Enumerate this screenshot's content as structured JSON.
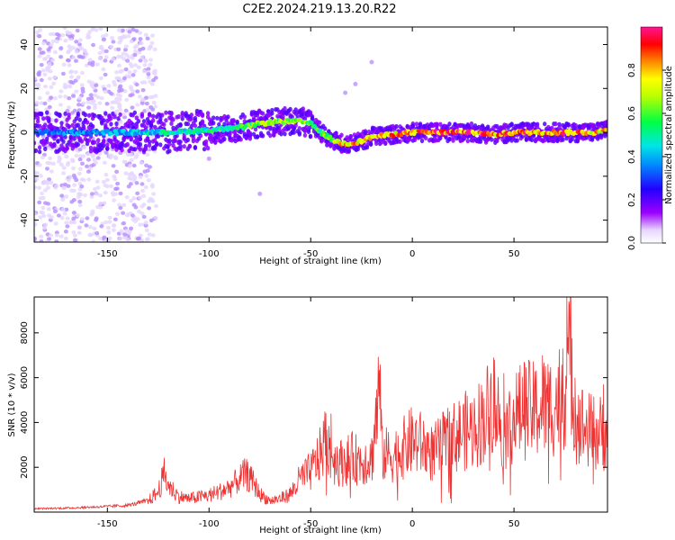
{
  "title": "C2E2.2024.219.13.20.R22",
  "colors": {
    "spectrogram_hot": "#ff1a1a",
    "spectrogram_mid": "#00ff66",
    "spectrogram_low": "#3300ff",
    "spectrogram_faint": "#c8a8ff",
    "snr_line": "#ee3333"
  },
  "chart_data": [
    {
      "type": "heatmap",
      "title": "C2E2.2024.219.13.20.R22",
      "xlabel": "Height of straight line (km)",
      "ylabel": "Frequency (Hz)",
      "xlim": [
        -186,
        96
      ],
      "ylim": [
        -50,
        48
      ],
      "x_ticks": [
        -150,
        -100,
        -50,
        0,
        50
      ],
      "x_tick_labels": [
        "-150",
        "-100",
        "-50",
        "0",
        "50"
      ],
      "y_ticks": [
        -40,
        -20,
        0,
        20,
        40
      ],
      "y_tick_labels": [
        "-40",
        "-20",
        "0",
        "20",
        "40"
      ],
      "colorbar": {
        "label": "Normalized spectral amplitude",
        "range": [
          0,
          1
        ],
        "ticks": [
          0.0,
          0.2,
          0.4,
          0.6,
          0.8
        ],
        "tick_labels": [
          "0.0",
          "0.2",
          "0.4",
          "0.6",
          "0.8"
        ]
      },
      "ridge": {
        "x": [
          -186,
          -160,
          -140,
          -120,
          -100,
          -85,
          -75,
          -65,
          -55,
          -50,
          -45,
          -40,
          -35,
          -30,
          -25,
          -20,
          -10,
          0,
          10,
          20,
          30,
          40,
          50,
          60,
          70,
          80,
          90,
          96
        ],
        "y": [
          0,
          0,
          0,
          0,
          1,
          2,
          4,
          5,
          5,
          4,
          0,
          -3,
          -5,
          -5,
          -4,
          -2,
          -1,
          0,
          0,
          0,
          0,
          -1,
          0,
          0,
          0,
          0,
          0,
          1
        ],
        "peak_amplitude": [
          0.35,
          0.4,
          0.45,
          0.5,
          0.55,
          0.6,
          0.65,
          0.7,
          0.7,
          0.65,
          0.6,
          0.7,
          0.8,
          0.85,
          0.85,
          0.8,
          0.85,
          0.9,
          0.95,
          0.95,
          0.95,
          0.9,
          0.95,
          0.9,
          0.95,
          0.9,
          0.85,
          0.8
        ]
      },
      "grid": false
    },
    {
      "type": "line",
      "xlabel": "Height of straight line (km)",
      "ylabel": "SNR (10 * v/v)",
      "xlim": [
        -186,
        96
      ],
      "ylim": [
        0,
        9600
      ],
      "x_ticks": [
        -150,
        -100,
        -50,
        0,
        50
      ],
      "x_tick_labels": [
        "-150",
        "-100",
        "-50",
        "0",
        "50"
      ],
      "y_ticks": [
        2000,
        4000,
        6000,
        8000
      ],
      "y_tick_labels": [
        "2000",
        "4000",
        "6000",
        "8000"
      ],
      "series": [
        {
          "x": [
            -186,
            -170,
            -150,
            -140,
            -130,
            -125,
            -122,
            -120,
            -115,
            -110,
            -100,
            -95,
            -90,
            -82,
            -78,
            -75,
            -70,
            -65,
            -60,
            -55,
            -50,
            -45,
            -42,
            -40,
            -35,
            -30,
            -25,
            -20,
            -16,
            -15,
            -10,
            -5,
            0,
            5,
            10,
            15,
            20,
            25,
            30,
            35,
            40,
            45,
            50,
            55,
            60,
            65,
            70,
            75,
            78,
            80,
            85,
            90,
            96
          ],
          "y": [
            150,
            180,
            250,
            300,
            500,
            900,
            1700,
            1200,
            700,
            600,
            750,
            900,
            1100,
            1700,
            1300,
            800,
            500,
            600,
            800,
            1500,
            1800,
            2600,
            3500,
            2500,
            2200,
            2400,
            2300,
            2400,
            5700,
            2600,
            2500,
            2800,
            3200,
            3000,
            2600,
            3000,
            3300,
            3600,
            3700,
            4200,
            5000,
            3500,
            4200,
            4600,
            4500,
            4700,
            4800,
            5500,
            7000,
            4300,
            3700,
            3500,
            3600
          ],
          "peaks": [
            [
              -122,
              1900
            ],
            [
              -80,
              1950
            ],
            [
              -52,
              1800
            ],
            [
              -40,
              4400
            ],
            [
              -16,
              5900
            ],
            [
              40,
              6900
            ],
            [
              45,
              6200
            ],
            [
              55,
              6700
            ],
            [
              64,
              7000
            ],
            [
              74,
              7300
            ],
            [
              76,
              9600
            ],
            [
              80,
              6000
            ],
            [
              94,
              5700
            ]
          ]
        }
      ],
      "grid": false
    }
  ]
}
